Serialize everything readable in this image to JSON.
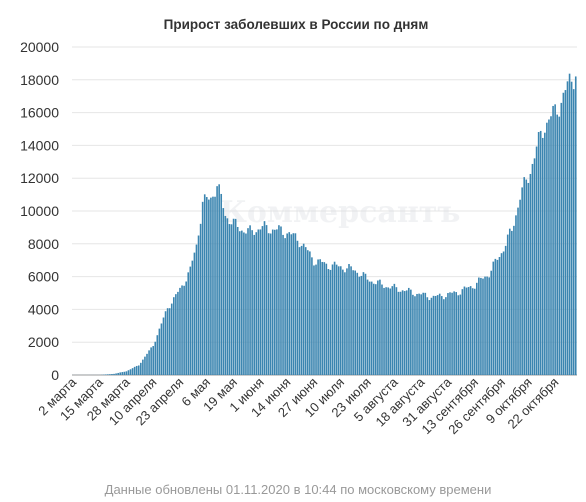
{
  "chart_data": {
    "type": "bar",
    "title": "Прирост заболевших в России по дням",
    "xlabel": "",
    "ylabel": "",
    "ylim": [
      0,
      20000
    ],
    "y_ticks": [
      0,
      2000,
      4000,
      6000,
      8000,
      10000,
      12000,
      14000,
      16000,
      18000,
      20000
    ],
    "x_ticks": [
      "2 марта",
      "15 марта",
      "28 марта",
      "10 апреля",
      "23 апреля",
      "6 мая",
      "19 мая",
      "1 июня",
      "14 июня",
      "27 июня",
      "10 июля",
      "23 июля",
      "5 августа",
      "18 августа",
      "31 августа",
      "13 сентября",
      "26 сентября",
      "9 октября",
      "22 октября"
    ],
    "date_range": [
      "2020-03-02",
      "2020-11-01"
    ],
    "daily_series_anchors": [
      [
        "2020-03-02",
        3
      ],
      [
        "2020-03-15",
        4
      ],
      [
        "2020-03-22",
        70
      ],
      [
        "2020-03-28",
        230
      ],
      [
        "2020-04-03",
        600
      ],
      [
        "2020-04-10",
        1800
      ],
      [
        "2020-04-17",
        4100
      ],
      [
        "2020-04-23",
        5200
      ],
      [
        "2020-04-28",
        6400
      ],
      [
        "2020-05-01",
        7900
      ],
      [
        "2020-05-04",
        10500
      ],
      [
        "2020-05-08",
        10800
      ],
      [
        "2020-05-11",
        11600
      ],
      [
        "2020-05-15",
        9800
      ],
      [
        "2020-05-19",
        9200
      ],
      [
        "2020-05-23",
        8900
      ],
      [
        "2020-05-27",
        8700
      ],
      [
        "2020-06-01",
        9000
      ],
      [
        "2020-06-07",
        8900
      ],
      [
        "2020-06-14",
        8700
      ],
      [
        "2020-06-20",
        8200
      ],
      [
        "2020-06-27",
        7000
      ],
      [
        "2020-07-04",
        6700
      ],
      [
        "2020-07-10",
        6600
      ],
      [
        "2020-07-17",
        6400
      ],
      [
        "2020-07-23",
        5850
      ],
      [
        "2020-07-30",
        5500
      ],
      [
        "2020-08-05",
        5300
      ],
      [
        "2020-08-12",
        5100
      ],
      [
        "2020-08-18",
        4900
      ],
      [
        "2020-08-24",
        4750
      ],
      [
        "2020-08-31",
        4900
      ],
      [
        "2020-09-06",
        5100
      ],
      [
        "2020-09-13",
        5500
      ],
      [
        "2020-09-20",
        6200
      ],
      [
        "2020-09-26",
        7500
      ],
      [
        "2020-10-01",
        8800
      ],
      [
        "2020-10-05",
        10900
      ],
      [
        "2020-10-09",
        12100
      ],
      [
        "2020-10-13",
        13800
      ],
      [
        "2020-10-17",
        15300
      ],
      [
        "2020-10-22",
        16000
      ],
      [
        "2020-10-26",
        17000
      ],
      [
        "2020-10-29",
        17800
      ],
      [
        "2020-11-01",
        18600
      ]
    ],
    "bar_color": "#3b85b0",
    "grid": true,
    "legend": "none"
  },
  "watermark": "Коммерсантъ",
  "footer": "Данные обновлены 01.11.2020 в 10:44 по московскому времени"
}
